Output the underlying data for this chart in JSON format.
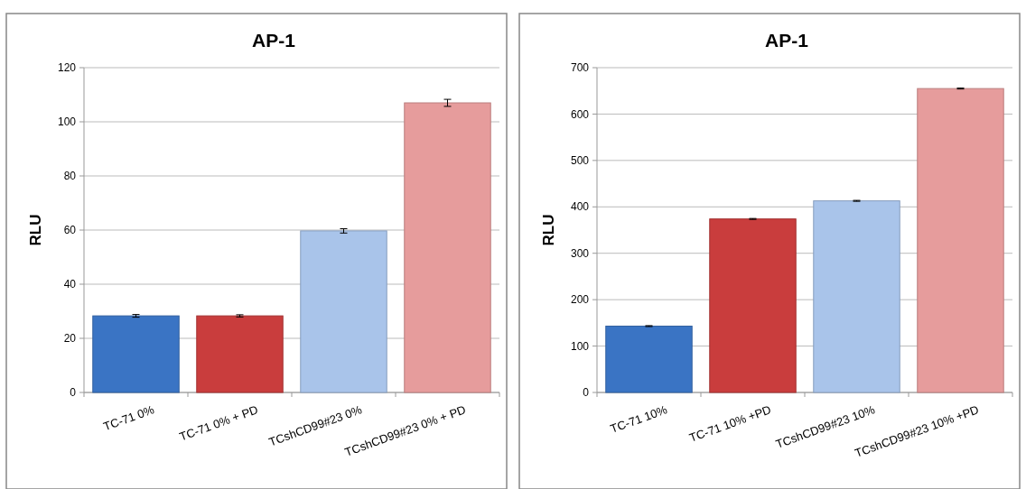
{
  "chart_data": [
    {
      "type": "bar",
      "title": "AP-1",
      "ylabel": "RLU",
      "categories": [
        "TC-71 0%",
        "TC-71 0% + PD",
        "TCshCD99#23 0%",
        "TCshCD99#23 0% + PD"
      ],
      "values": [
        28.3,
        28.3,
        59.7,
        107
      ],
      "errors": [
        0.5,
        0.4,
        0.8,
        1.3
      ],
      "colors": [
        "#3a74c4",
        "#c93d3d",
        "#a9c4ea",
        "#e69c9c"
      ],
      "ylim": [
        0,
        120
      ],
      "yticks": [
        0,
        20,
        40,
        60,
        80,
        100,
        120
      ],
      "grid": "y"
    },
    {
      "type": "bar",
      "title": "AP-1",
      "ylabel": "RLU",
      "categories": [
        "TC-71 10%",
        "TC-71 10% +PD",
        "TCshCD99#23 10%",
        "TCshCD99#23 10% +PD"
      ],
      "values": [
        143,
        374,
        413,
        655
      ],
      "errors": [
        1,
        1,
        1,
        1
      ],
      "colors": [
        "#3a74c4",
        "#c93d3d",
        "#a9c4ea",
        "#e69c9c"
      ],
      "ylim": [
        0,
        700
      ],
      "yticks": [
        0,
        100,
        200,
        300,
        400,
        500,
        600,
        700
      ],
      "grid": "y"
    }
  ]
}
